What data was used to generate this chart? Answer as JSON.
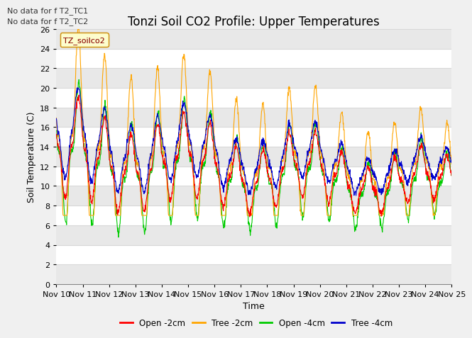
{
  "title": "Tonzi Soil CO2 Profile: Upper Temperatures",
  "xlabel": "Time",
  "ylabel": "Soil Temperature (C)",
  "annotations": [
    "No data for f T2_TC1",
    "No data for f T2_TC2"
  ],
  "legend_label": "TZ_soilco2",
  "legend_labels": [
    "Open -2cm",
    "Tree -2cm",
    "Open -4cm",
    "Tree -4cm"
  ],
  "colors": {
    "open_2cm": "#ff0000",
    "tree_2cm": "#ffa500",
    "open_4cm": "#00cc00",
    "tree_4cm": "#0000cc"
  },
  "ylim": [
    0,
    26
  ],
  "yticks": [
    0,
    2,
    4,
    6,
    8,
    10,
    12,
    14,
    16,
    18,
    20,
    22,
    24,
    26
  ],
  "xtick_labels": [
    "Nov 10",
    "Nov 11",
    "Nov 12",
    "Nov 13",
    "Nov 14",
    "Nov 15",
    "Nov 16",
    "Nov 17",
    "Nov 18",
    "Nov 19",
    "Nov 20",
    "Nov 21",
    "Nov 22",
    "Nov 23",
    "Nov 24",
    "Nov 25"
  ],
  "plot_bg_color": "#ffffff",
  "grid_color": "#d8d8d8",
  "band_color": "#e8e8e8",
  "title_fontsize": 12,
  "axis_fontsize": 9,
  "tick_fontsize": 8
}
